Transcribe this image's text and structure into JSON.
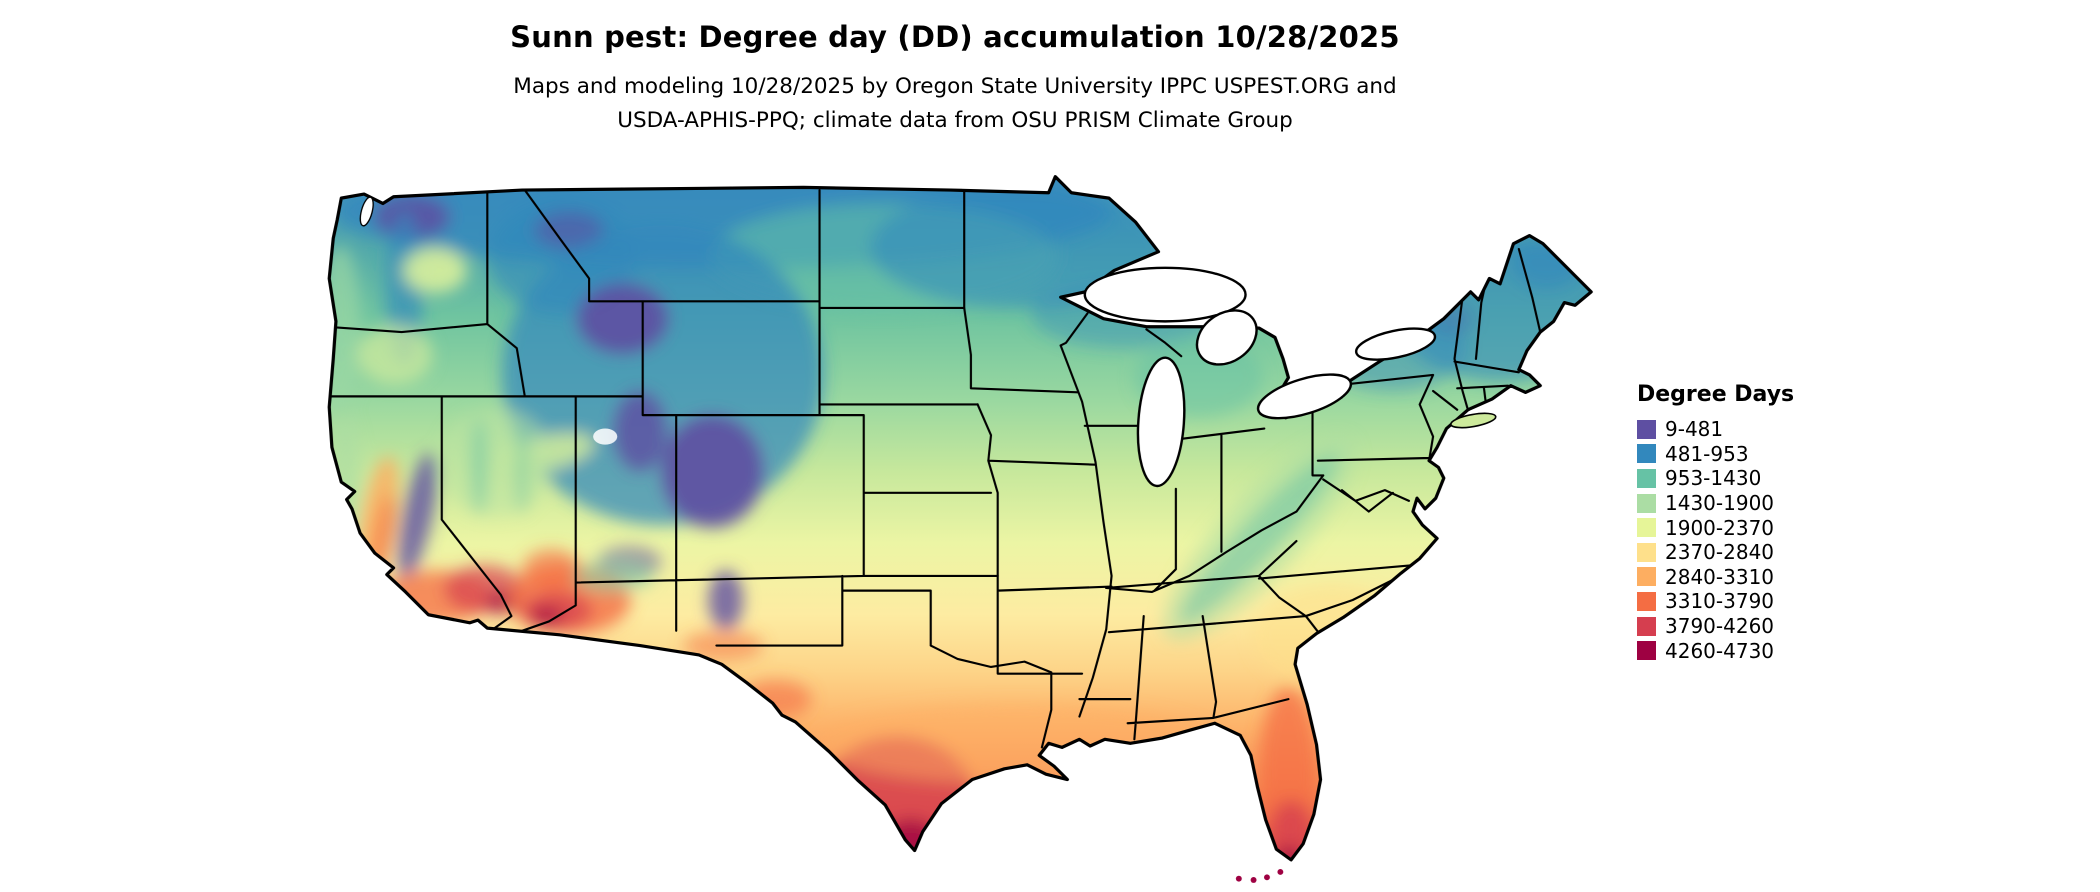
{
  "header": {
    "title": "Sunn pest: Degree day (DD) accumulation 10/28/2025",
    "subtitle_line1": "Maps and modeling 10/28/2025 by Oregon State University IPPC USPEST.ORG and",
    "subtitle_line2": "USDA-APHIS-PPQ; climate data from OSU PRISM Climate Group"
  },
  "map": {
    "name": "Continental United States degree-day accumulation choropleth",
    "model": "Sunn pest",
    "date": "10/28/2025"
  },
  "legend": {
    "title": "Degree Days",
    "items": [
      {
        "label": "9-481",
        "color": "#5e4fa2"
      },
      {
        "label": "481-953",
        "color": "#3288bd"
      },
      {
        "label": "953-1430",
        "color": "#66c2a5"
      },
      {
        "label": "1430-1900",
        "color": "#abdda4"
      },
      {
        "label": "1900-2370",
        "color": "#e6f598"
      },
      {
        "label": "2370-2840",
        "color": "#fee08b"
      },
      {
        "label": "2840-3310",
        "color": "#fdae61"
      },
      {
        "label": "3310-3790",
        "color": "#f46d43"
      },
      {
        "label": "3790-4260",
        "color": "#d53e4f"
      },
      {
        "label": "4260-4730",
        "color": "#9e0142"
      }
    ]
  }
}
